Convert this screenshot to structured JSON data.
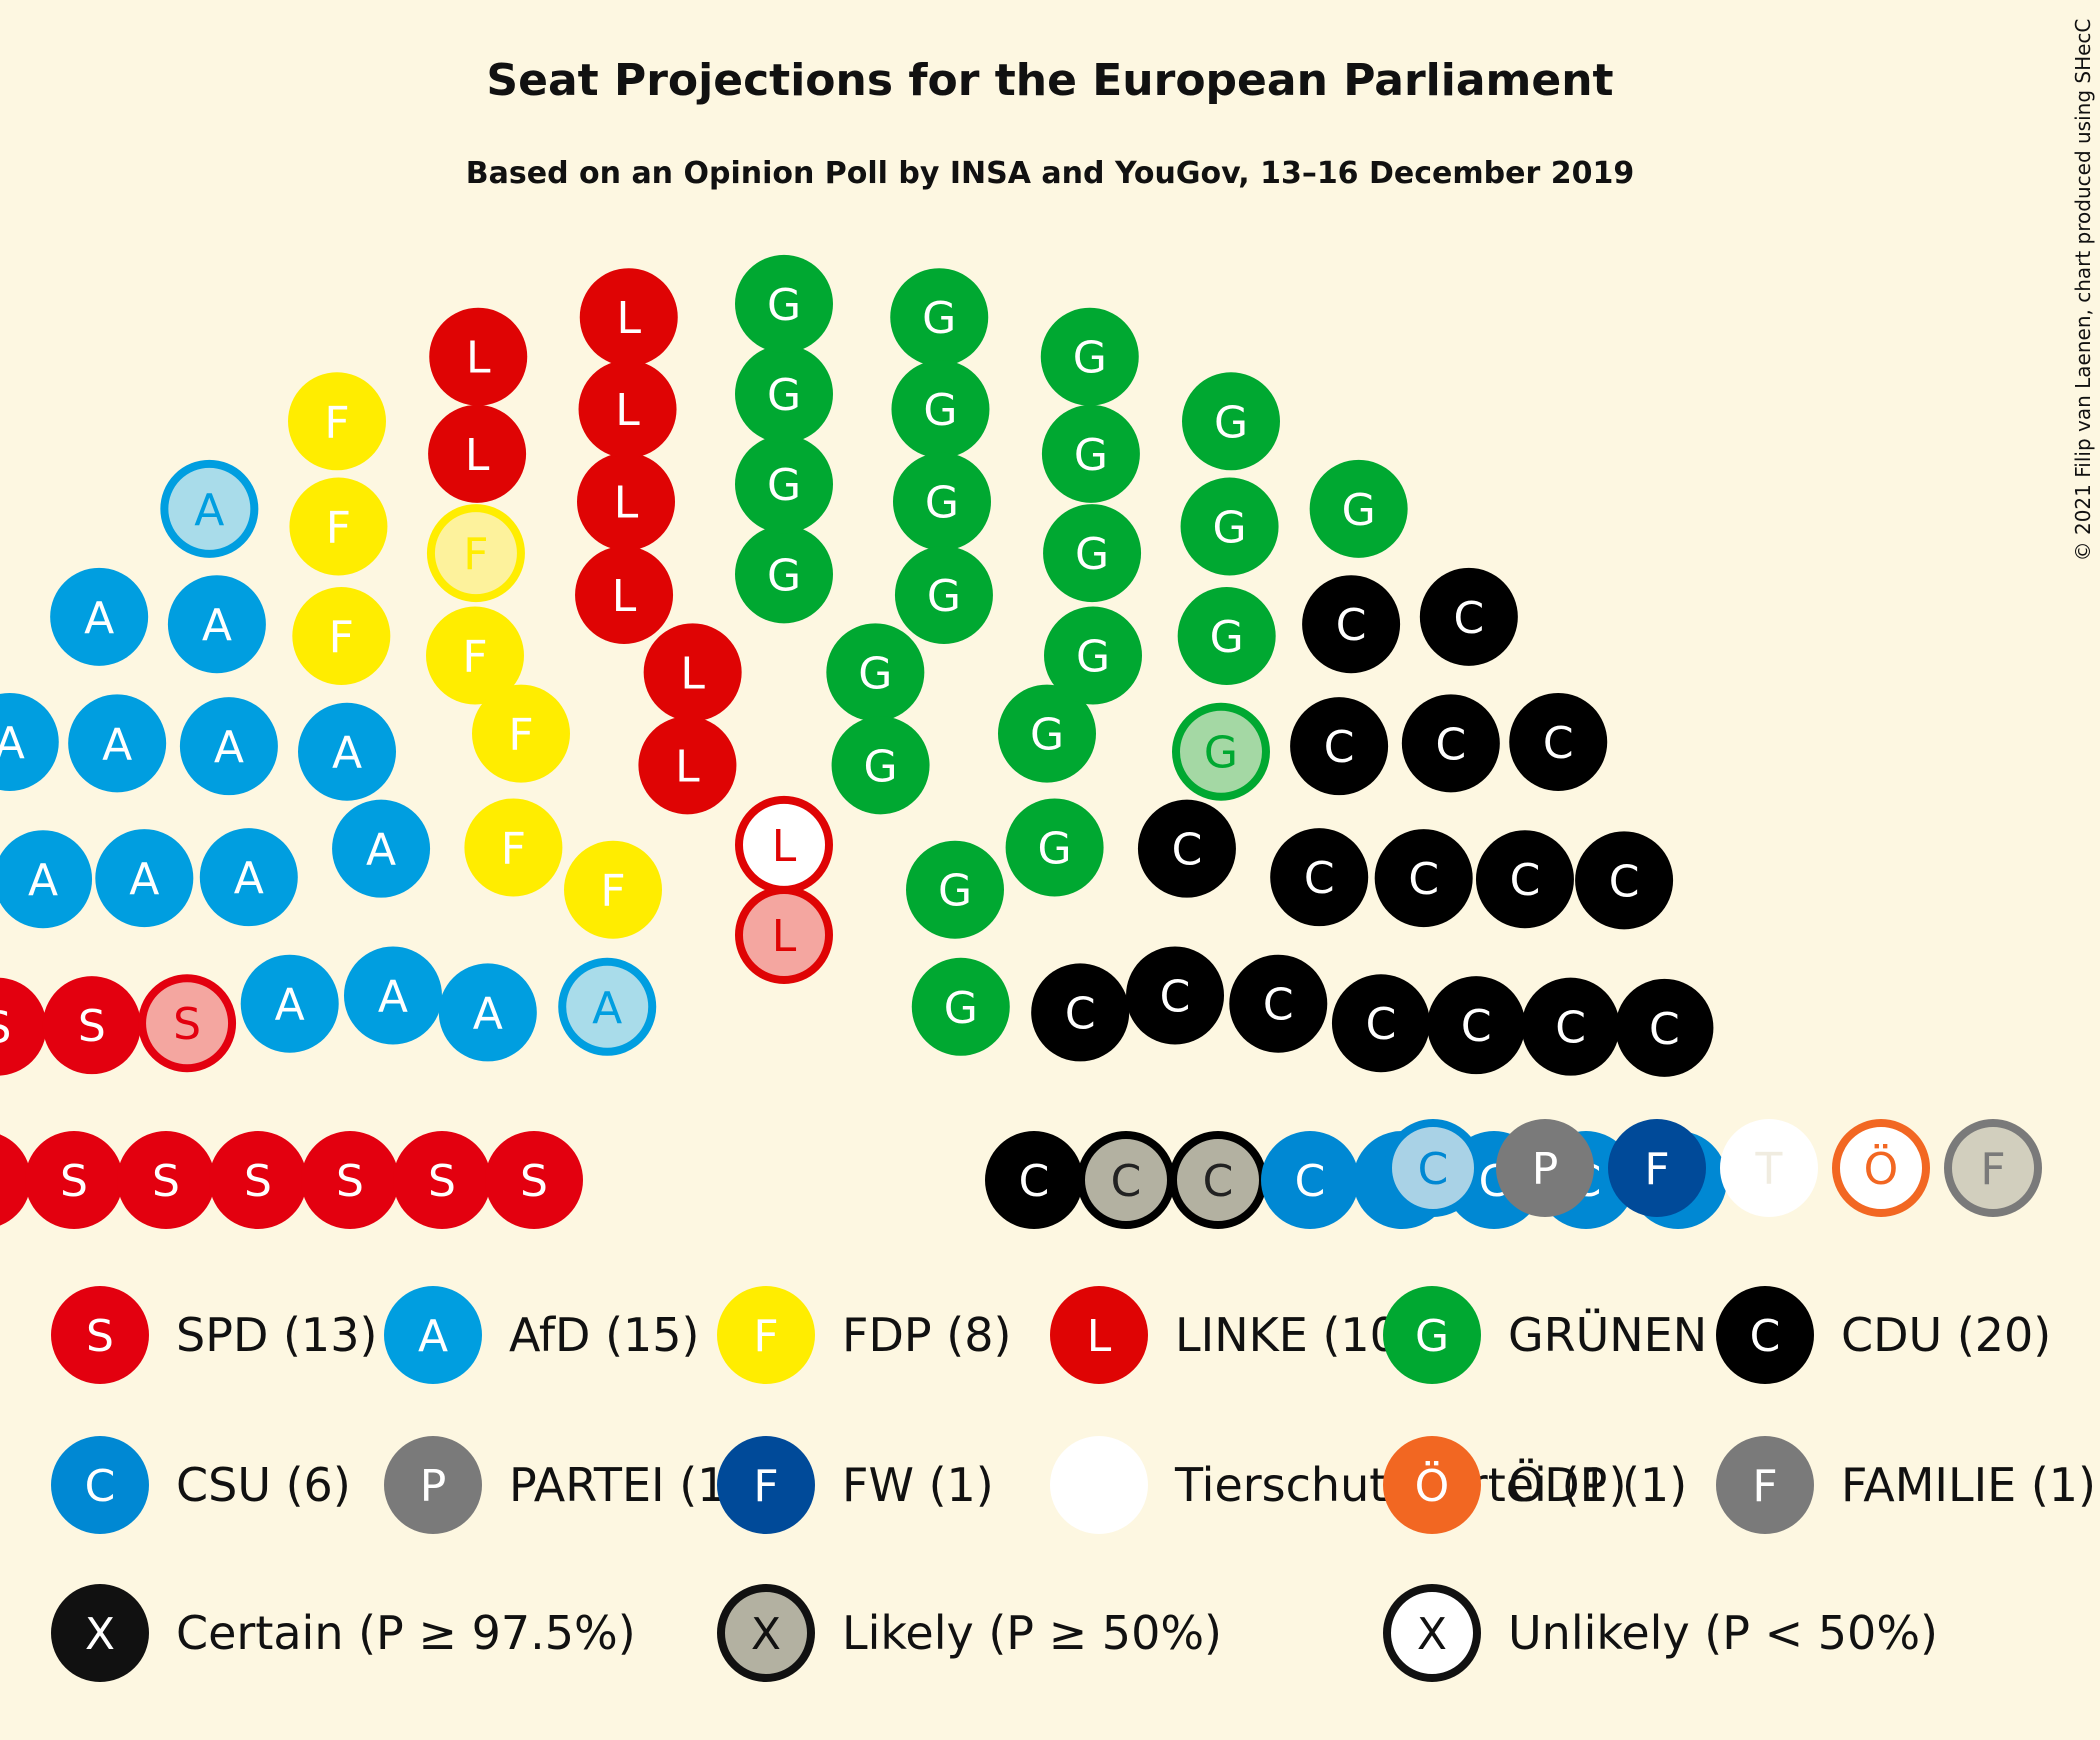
{
  "chart_data": {
    "type": "parliament",
    "title": "Seat Projections for the European Parliament",
    "subtitle": "Based on an Opinion Poll by INSA and YouGov, 13–16 December 2019",
    "credit": "© 2021 Filip van Laenen, chart produced using SHecC",
    "parties": [
      {
        "letter": "S",
        "legend": "SPD (13)",
        "color": "#e3000f",
        "light": "#f4a6a0",
        "seats": 13,
        "certain": 11,
        "likely": 2
      },
      {
        "letter": "A",
        "legend": "AfD (15)",
        "color": "#009ee0",
        "light": "#a9dcea",
        "seats": 15,
        "certain": 13,
        "likely": 2
      },
      {
        "letter": "F",
        "legend": "FDP (8)",
        "color": "#ffed00",
        "light": "#fdf29c",
        "seats": 8,
        "certain": 7,
        "likely": 1
      },
      {
        "letter": "L",
        "legend": "LINKE (10)",
        "color": "#df0404",
        "light": "#f4a6a0",
        "seats": 10,
        "certain": 8,
        "likely": 1,
        "unlikely": 1
      },
      {
        "letter": "G",
        "legend": "GRÜNEN (23)",
        "color": "#00a831",
        "light": "#a4d8a4",
        "seats": 23,
        "certain": 22,
        "likely": 1
      },
      {
        "letter": "C",
        "legend": "CDU (20)",
        "color": "#000000",
        "light": "#b3b1a1",
        "seats": 20,
        "certain": 18,
        "likely": 2
      },
      {
        "letter": "C",
        "legend": "CSU (6)",
        "color": "#0088d3",
        "light": "#a9d2e6",
        "seats": 6,
        "certain": 5,
        "likely": 1
      },
      {
        "letter": "P",
        "legend": "PARTEI (1)",
        "color": "#7a7a7a",
        "light": "#c8c8c0",
        "seats": 1,
        "certain": 1
      },
      {
        "letter": "F",
        "legend": "FW (1)",
        "color": "#004a99",
        "light": "#a0b8d8",
        "seats": 1,
        "certain": 1
      },
      {
        "letter": "T",
        "legend": "Tierschutzpartei (1)",
        "color": "#ffffff",
        "light": "#fdf7e1",
        "seats": 1,
        "certain": 1
      },
      {
        "letter": "Ö",
        "legend": "ÖDP (1)",
        "color": "#f26722",
        "light": "#fdf7e1",
        "seats": 1,
        "unlikely": 1
      },
      {
        "letter": "F",
        "legend": "FAMILIE (1)",
        "color": "#7a7a7a",
        "light": "#d2cfbe",
        "seats": 1,
        "likely": 1
      }
    ],
    "certainty_legend": [
      {
        "symbol": "X",
        "label": "Certain (P ≥ 97.5%)",
        "style": "certain"
      },
      {
        "symbol": "X",
        "label": "Likely (P ≥ 50%)",
        "style": "likely"
      },
      {
        "symbol": "X",
        "label": "Unlikely (P < 50%)",
        "style": "unlikely"
      }
    ],
    "seats": [
      {
        "party": 0,
        "status": "certain"
      },
      {
        "party": 0,
        "status": "certain"
      },
      {
        "party": 0,
        "status": "certain"
      },
      {
        "party": 0,
        "status": "certain"
      },
      {
        "party": 0,
        "status": "certain"
      },
      {
        "party": 0,
        "status": "certain"
      },
      {
        "party": 0,
        "status": "certain"
      },
      {
        "party": 0,
        "status": "certain"
      },
      {
        "party": 0,
        "status": "certain"
      },
      {
        "party": 0,
        "status": "certain"
      },
      {
        "party": 0,
        "status": "certain"
      },
      {
        "party": 0,
        "status": "likely"
      },
      {
        "party": 0,
        "status": "likely"
      },
      {
        "party": 1,
        "status": "certain"
      },
      {
        "party": 1,
        "status": "certain"
      },
      {
        "party": 1,
        "status": "certain"
      },
      {
        "party": 1,
        "status": "certain"
      },
      {
        "party": 1,
        "status": "certain"
      },
      {
        "party": 1,
        "status": "certain"
      },
      {
        "party": 1,
        "status": "certain"
      },
      {
        "party": 1,
        "status": "certain"
      },
      {
        "party": 1,
        "status": "certain"
      },
      {
        "party": 1,
        "status": "certain"
      },
      {
        "party": 1,
        "status": "certain"
      },
      {
        "party": 1,
        "status": "certain"
      },
      {
        "party": 1,
        "status": "certain"
      },
      {
        "party": 1,
        "status": "likely"
      },
      {
        "party": 1,
        "status": "likely"
      },
      {
        "party": 2,
        "status": "certain"
      },
      {
        "party": 2,
        "status": "certain"
      },
      {
        "party": 2,
        "status": "certain"
      },
      {
        "party": 2,
        "status": "certain"
      },
      {
        "party": 2,
        "status": "certain"
      },
      {
        "party": 2,
        "status": "certain"
      },
      {
        "party": 2,
        "status": "certain"
      },
      {
        "party": 2,
        "status": "likely"
      },
      {
        "party": 3,
        "status": "certain"
      },
      {
        "party": 3,
        "status": "certain"
      },
      {
        "party": 3,
        "status": "certain"
      },
      {
        "party": 3,
        "status": "certain"
      },
      {
        "party": 3,
        "status": "certain"
      },
      {
        "party": 3,
        "status": "certain"
      },
      {
        "party": 3,
        "status": "certain"
      },
      {
        "party": 3,
        "status": "certain"
      },
      {
        "party": 3,
        "status": "likely"
      },
      {
        "party": 3,
        "status": "unlikely"
      },
      {
        "party": 4,
        "status": "certain"
      },
      {
        "party": 4,
        "status": "certain"
      },
      {
        "party": 4,
        "status": "certain"
      },
      {
        "party": 4,
        "status": "certain"
      },
      {
        "party": 4,
        "status": "certain"
      },
      {
        "party": 4,
        "status": "certain"
      },
      {
        "party": 4,
        "status": "certain"
      },
      {
        "party": 4,
        "status": "certain"
      },
      {
        "party": 4,
        "status": "certain"
      },
      {
        "party": 4,
        "status": "certain"
      },
      {
        "party": 4,
        "status": "certain"
      },
      {
        "party": 4,
        "status": "certain"
      },
      {
        "party": 4,
        "status": "certain"
      },
      {
        "party": 4,
        "status": "certain"
      },
      {
        "party": 4,
        "status": "certain"
      },
      {
        "party": 4,
        "status": "certain"
      },
      {
        "party": 4,
        "status": "certain"
      },
      {
        "party": 4,
        "status": "certain"
      },
      {
        "party": 4,
        "status": "certain"
      },
      {
        "party": 4,
        "status": "certain"
      },
      {
        "party": 4,
        "status": "certain"
      },
      {
        "party": 4,
        "status": "certain"
      },
      {
        "party": 4,
        "status": "likely"
      },
      {
        "party": 5,
        "status": "certain"
      },
      {
        "party": 5,
        "status": "certain"
      },
      {
        "party": 5,
        "status": "certain"
      },
      {
        "party": 5,
        "status": "certain"
      },
      {
        "party": 5,
        "status": "certain"
      },
      {
        "party": 5,
        "status": "certain"
      },
      {
        "party": 5,
        "status": "certain"
      },
      {
        "party": 5,
        "status": "certain"
      },
      {
        "party": 5,
        "status": "certain"
      },
      {
        "party": 5,
        "status": "certain"
      },
      {
        "party": 5,
        "status": "certain"
      },
      {
        "party": 5,
        "status": "certain"
      },
      {
        "party": 5,
        "status": "certain"
      },
      {
        "party": 5,
        "status": "certain"
      },
      {
        "party": 5,
        "status": "certain"
      },
      {
        "party": 5,
        "status": "certain"
      },
      {
        "party": 5,
        "status": "certain"
      },
      {
        "party": 5,
        "status": "certain"
      },
      {
        "party": 5,
        "status": "likely"
      },
      {
        "party": 5,
        "status": "likely"
      },
      {
        "party": 6,
        "status": "certain"
      },
      {
        "party": 6,
        "status": "certain"
      },
      {
        "party": 6,
        "status": "certain"
      },
      {
        "party": 6,
        "status": "certain"
      },
      {
        "party": 6,
        "status": "certain"
      },
      {
        "party": 6,
        "status": "likely"
      },
      {
        "party": 7,
        "status": "certain"
      },
      {
        "party": 8,
        "status": "certain"
      },
      {
        "party": 9,
        "status": "certain"
      },
      {
        "party": 10,
        "status": "unlikely"
      },
      {
        "party": 11,
        "status": "likely"
      }
    ]
  }
}
